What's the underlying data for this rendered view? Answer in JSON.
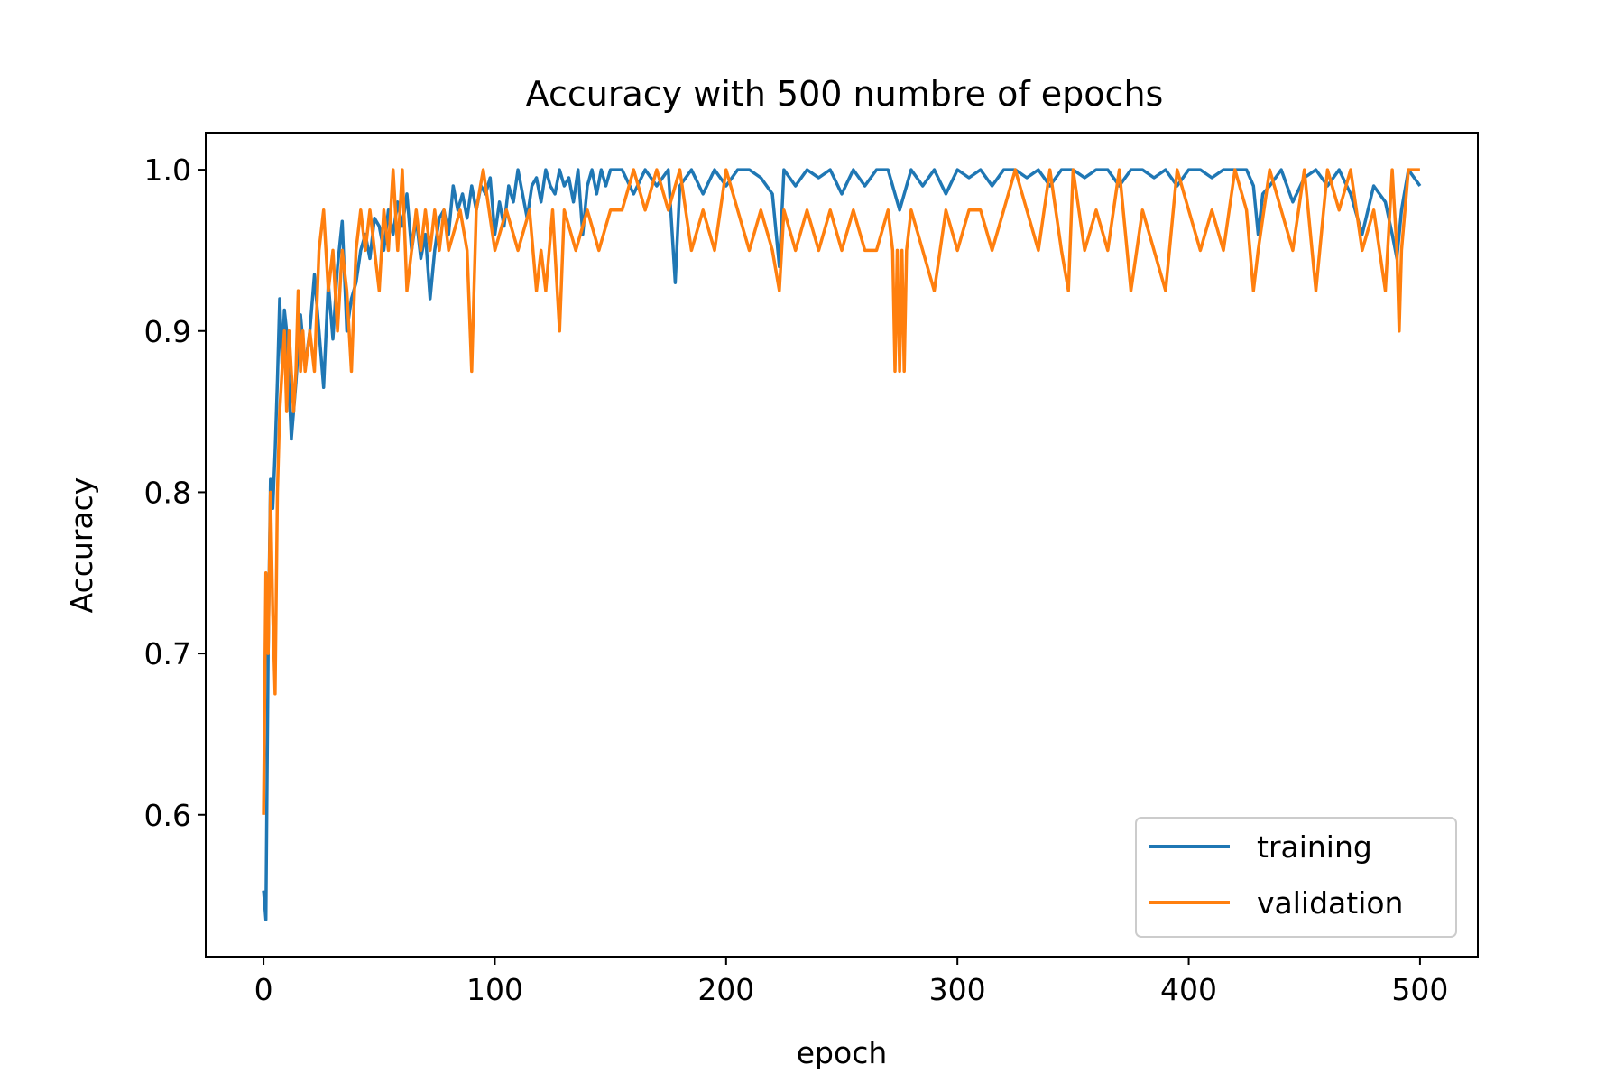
{
  "chart_data": {
    "type": "line",
    "title": "Accuracy with 500 numbre of epochs",
    "xlabel": "epoch",
    "ylabel": "Accuracy",
    "xlim": [
      -25,
      525
    ],
    "ylim": [
      0.512,
      1.023
    ],
    "xticks": [
      0,
      100,
      200,
      300,
      400,
      500
    ],
    "yticks": [
      0.6,
      0.7,
      0.8,
      0.9,
      1.0
    ],
    "xtick_labels": [
      "0",
      "100",
      "200",
      "300",
      "400",
      "500"
    ],
    "ytick_labels": [
      "0.6",
      "0.7",
      "0.8",
      "0.9",
      "1.0"
    ],
    "legend": {
      "placement": "lower-right"
    },
    "series": [
      {
        "name": "training",
        "color": "#1f77b4",
        "x": [
          0,
          1,
          2,
          3,
          4,
          5,
          6,
          7,
          8,
          9,
          10,
          12,
          14,
          16,
          18,
          20,
          22,
          24,
          26,
          28,
          30,
          32,
          34,
          36,
          38,
          40,
          42,
          44,
          46,
          48,
          50,
          52,
          54,
          56,
          58,
          60,
          62,
          64,
          66,
          68,
          70,
          72,
          74,
          76,
          78,
          80,
          82,
          84,
          86,
          88,
          90,
          92,
          94,
          96,
          98,
          100,
          102,
          104,
          106,
          108,
          110,
          112,
          114,
          116,
          118,
          120,
          122,
          124,
          126,
          128,
          130,
          132,
          134,
          136,
          138,
          140,
          142,
          144,
          146,
          148,
          150,
          155,
          160,
          165,
          170,
          175,
          178,
          180,
          185,
          190,
          195,
          200,
          205,
          210,
          215,
          220,
          223,
          225,
          230,
          235,
          240,
          245,
          250,
          255,
          260,
          265,
          270,
          275,
          280,
          285,
          290,
          295,
          300,
          305,
          310,
          315,
          320,
          325,
          330,
          335,
          340,
          345,
          350,
          355,
          360,
          365,
          370,
          375,
          380,
          385,
          390,
          395,
          400,
          405,
          410,
          415,
          420,
          425,
          428,
          430,
          432,
          435,
          440,
          445,
          450,
          455,
          460,
          465,
          470,
          475,
          480,
          485,
          488,
          490,
          492,
          495,
          500
        ],
        "y": [
          0.553,
          0.535,
          0.7,
          0.808,
          0.79,
          0.825,
          0.87,
          0.92,
          0.88,
          0.913,
          0.9,
          0.833,
          0.868,
          0.91,
          0.878,
          0.9,
          0.935,
          0.9,
          0.865,
          0.93,
          0.895,
          0.94,
          0.968,
          0.9,
          0.92,
          0.93,
          0.95,
          0.96,
          0.945,
          0.97,
          0.965,
          0.95,
          0.975,
          0.96,
          0.98,
          0.965,
          0.985,
          0.95,
          0.97,
          0.945,
          0.96,
          0.92,
          0.95,
          0.97,
          0.975,
          0.96,
          0.99,
          0.975,
          0.985,
          0.97,
          0.99,
          0.975,
          0.99,
          0.985,
          0.995,
          0.96,
          0.98,
          0.965,
          0.99,
          0.98,
          1.0,
          0.985,
          0.97,
          0.99,
          0.995,
          0.98,
          1.0,
          0.99,
          0.985,
          1.0,
          0.99,
          0.995,
          0.98,
          1.0,
          0.96,
          0.99,
          1.0,
          0.985,
          1.0,
          0.99,
          1.0,
          1.0,
          0.985,
          1.0,
          0.99,
          1.0,
          0.93,
          0.99,
          1.0,
          0.985,
          1.0,
          0.99,
          1.0,
          1.0,
          0.995,
          0.985,
          0.94,
          1.0,
          0.99,
          1.0,
          0.995,
          1.0,
          0.985,
          1.0,
          0.99,
          1.0,
          1.0,
          0.975,
          1.0,
          0.99,
          1.0,
          0.985,
          1.0,
          0.995,
          1.0,
          0.99,
          1.0,
          1.0,
          0.995,
          1.0,
          0.99,
          1.0,
          1.0,
          0.995,
          1.0,
          1.0,
          0.99,
          1.0,
          1.0,
          0.995,
          1.0,
          0.99,
          1.0,
          1.0,
          0.995,
          1.0,
          1.0,
          1.0,
          0.99,
          0.96,
          0.985,
          0.99,
          1.0,
          0.98,
          0.995,
          1.0,
          0.99,
          1.0,
          0.985,
          0.96,
          0.99,
          0.98,
          0.96,
          0.945,
          0.975,
          1.0,
          0.99
        ]
      },
      {
        "name": "validation",
        "color": "#ff7f0e",
        "x": [
          0,
          1,
          2,
          3,
          4,
          5,
          6,
          7,
          8,
          9,
          10,
          11,
          12,
          13,
          14,
          15,
          16,
          17,
          18,
          20,
          22,
          24,
          26,
          28,
          30,
          32,
          34,
          36,
          38,
          40,
          42,
          44,
          46,
          48,
          50,
          52,
          54,
          56,
          58,
          60,
          62,
          64,
          66,
          68,
          70,
          72,
          74,
          76,
          78,
          80,
          85,
          88,
          90,
          92,
          95,
          100,
          105,
          110,
          115,
          118,
          120,
          122,
          125,
          128,
          130,
          135,
          140,
          145,
          150,
          155,
          160,
          165,
          170,
          175,
          180,
          185,
          190,
          195,
          200,
          205,
          210,
          215,
          220,
          223,
          225,
          230,
          235,
          240,
          245,
          250,
          255,
          260,
          265,
          270,
          272,
          273,
          274,
          275,
          276,
          277,
          278,
          280,
          285,
          290,
          295,
          300,
          305,
          310,
          315,
          320,
          325,
          330,
          335,
          340,
          345,
          348,
          350,
          355,
          360,
          365,
          370,
          375,
          380,
          385,
          390,
          395,
          400,
          405,
          410,
          415,
          420,
          425,
          428,
          430,
          435,
          440,
          445,
          450,
          455,
          460,
          465,
          470,
          475,
          480,
          485,
          488,
          490,
          491,
          492,
          495,
          500
        ],
        "y": [
          0.6,
          0.75,
          0.7,
          0.8,
          0.725,
          0.675,
          0.8,
          0.85,
          0.875,
          0.9,
          0.85,
          0.9,
          0.875,
          0.85,
          0.875,
          0.925,
          0.875,
          0.9,
          0.875,
          0.9,
          0.875,
          0.95,
          0.975,
          0.925,
          0.95,
          0.9,
          0.95,
          0.925,
          0.875,
          0.95,
          0.975,
          0.95,
          0.975,
          0.95,
          0.925,
          0.975,
          0.95,
          1.0,
          0.95,
          1.0,
          0.925,
          0.95,
          0.975,
          0.95,
          0.975,
          0.95,
          0.975,
          0.95,
          0.975,
          0.95,
          0.975,
          0.95,
          0.875,
          0.975,
          1.0,
          0.95,
          0.975,
          0.95,
          0.975,
          0.925,
          0.95,
          0.925,
          0.975,
          0.9,
          0.975,
          0.95,
          0.975,
          0.95,
          0.975,
          0.975,
          1.0,
          0.975,
          1.0,
          0.975,
          1.0,
          0.95,
          0.975,
          0.95,
          1.0,
          0.975,
          0.95,
          0.975,
          0.95,
          0.925,
          0.975,
          0.95,
          0.975,
          0.95,
          0.975,
          0.95,
          0.975,
          0.95,
          0.95,
          0.975,
          0.95,
          0.875,
          0.95,
          0.875,
          0.95,
          0.875,
          0.95,
          0.975,
          0.95,
          0.925,
          0.975,
          0.95,
          0.975,
          0.975,
          0.95,
          0.975,
          1.0,
          0.975,
          0.95,
          1.0,
          0.95,
          0.925,
          1.0,
          0.95,
          0.975,
          0.95,
          1.0,
          0.925,
          0.975,
          0.95,
          0.925,
          1.0,
          0.975,
          0.95,
          0.975,
          0.95,
          1.0,
          0.975,
          0.925,
          0.95,
          1.0,
          0.975,
          0.95,
          1.0,
          0.925,
          1.0,
          0.975,
          1.0,
          0.95,
          0.975,
          0.925,
          1.0,
          0.95,
          0.9,
          0.95,
          1.0,
          1.0
        ]
      }
    ]
  }
}
